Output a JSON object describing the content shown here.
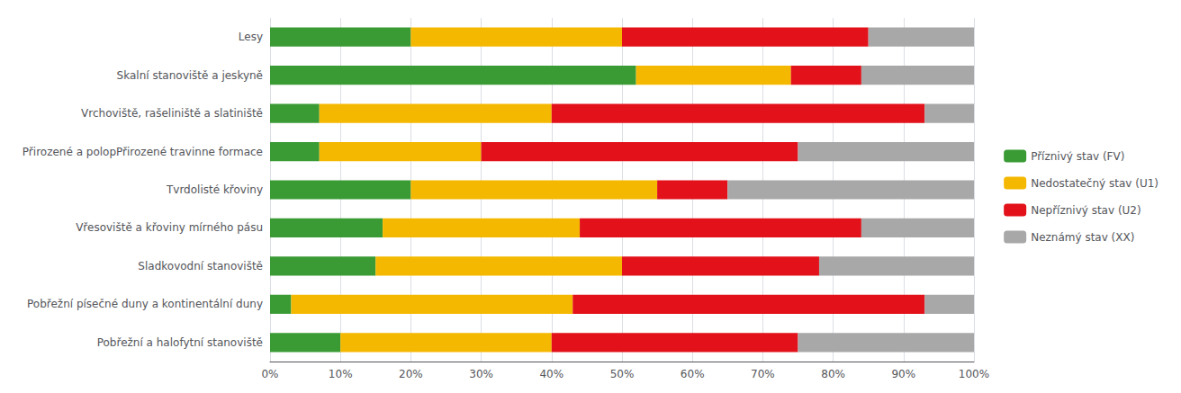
{
  "chart_data": {
    "type": "bar",
    "orientation": "horizontal",
    "stacked": true,
    "categories": [
      "Lesy",
      "Skalní stanoviště a jeskyně",
      "Vrchoviště, rašeliniště a slatiniště",
      "Přirozené a polopPřirozené travinne formace",
      "Tvrdolisté křoviny",
      "Vřesoviště a křoviny mírného pásu",
      "Sladkovodní stanoviště",
      "Pobřežní písečné duny a kontinentální duny",
      "Pobřežní a halofytní stanoviště"
    ],
    "series": [
      {
        "name": "Příznivý stav (FV)",
        "color": "#3a9b35",
        "values": [
          20,
          52,
          7,
          7,
          20,
          16,
          15,
          3,
          10
        ]
      },
      {
        "name": "Nedostatečný stav (U1)",
        "color": "#f5b800",
        "values": [
          30,
          22,
          33,
          23,
          35,
          28,
          35,
          40,
          30
        ]
      },
      {
        "name": "Nepříznivý stav (U2)",
        "color": "#e2111a",
        "values": [
          35,
          10,
          53,
          45,
          10,
          40,
          28,
          50,
          35
        ]
      },
      {
        "name": "Neznámý stav (XX)",
        "color": "#a8a8a8",
        "values": [
          15,
          16,
          7,
          25,
          35,
          16,
          22,
          7,
          25
        ]
      }
    ],
    "xlim": [
      0,
      100
    ],
    "xticks": [
      {
        "value": 0,
        "label": "0%"
      },
      {
        "value": 10,
        "label": "10%"
      },
      {
        "value": 20,
        "label": "20%"
      },
      {
        "value": 30,
        "label": "30%"
      },
      {
        "value": 40,
        "label": "40%"
      },
      {
        "value": 50,
        "label": "50%"
      },
      {
        "value": 60,
        "label": "60%"
      },
      {
        "value": 70,
        "label": "70%"
      },
      {
        "value": 80,
        "label": "80%"
      },
      {
        "value": 90,
        "label": "90%"
      },
      {
        "value": 100,
        "label": "100%"
      }
    ],
    "grid": true,
    "legend": "right"
  }
}
